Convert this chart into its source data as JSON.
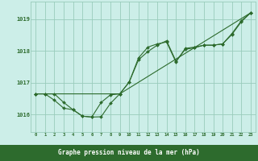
{
  "background_color": "#cceee8",
  "plot_bg_color": "#cceee8",
  "bottom_bar_color": "#2d6b2d",
  "grid_color": "#99ccbb",
  "line_color": "#2d6b2d",
  "marker_color": "#2d6b2d",
  "xlabel": "Graphe pression niveau de la mer (hPa)",
  "xlabel_color": "#ffffff",
  "ylabel_ticks": [
    1016,
    1017,
    1018,
    1019
  ],
  "tick_color": "#2d6b2d",
  "xlim": [
    -0.5,
    23.5
  ],
  "ylim": [
    1015.45,
    1019.55
  ],
  "xticks": [
    0,
    1,
    2,
    3,
    4,
    5,
    6,
    7,
    8,
    9,
    10,
    11,
    12,
    13,
    14,
    15,
    16,
    17,
    18,
    19,
    20,
    21,
    22,
    23
  ],
  "series1": [
    1016.65,
    1016.65,
    1016.65,
    1016.38,
    1016.15,
    1015.95,
    1015.92,
    1015.93,
    1016.35,
    1016.65,
    1017.02,
    1017.78,
    1018.12,
    1018.22,
    1018.28,
    1017.65,
    1018.08,
    1018.12,
    1018.18,
    1018.18,
    1018.22,
    1018.55,
    1018.95,
    1019.2
  ],
  "series2": [
    1016.65,
    1016.65,
    1016.45,
    1016.2,
    1016.15,
    1015.95,
    1015.92,
    1016.38,
    1016.62,
    1016.65,
    1017.02,
    1017.72,
    1017.98,
    1018.18,
    1018.32,
    1017.68,
    1018.05,
    1018.1,
    1018.18,
    1018.18,
    1018.22,
    1018.52,
    1018.92,
    1019.2
  ],
  "series3_x": [
    0,
    9,
    23
  ],
  "series3_y": [
    1016.65,
    1016.65,
    1019.2
  ]
}
